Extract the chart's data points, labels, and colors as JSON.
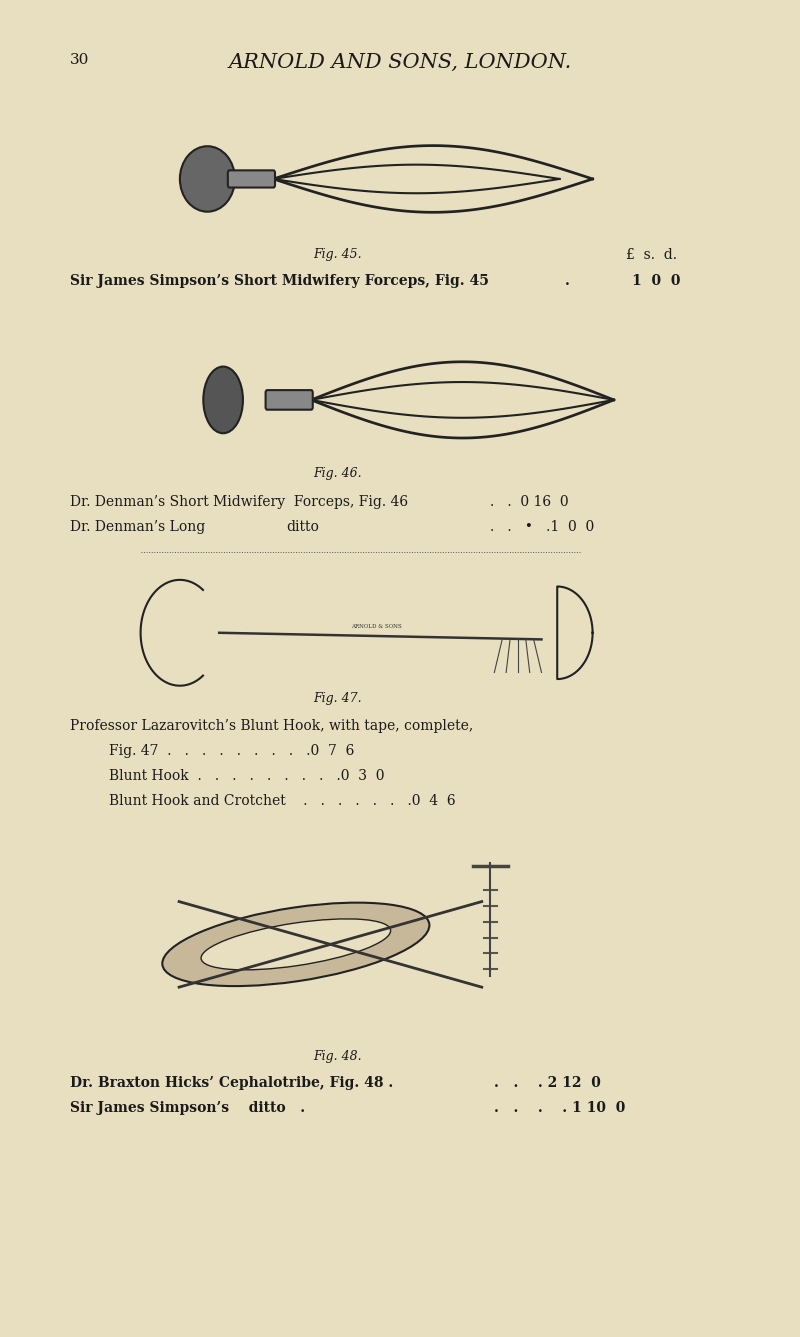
{
  "bg_color": "#e8dfc0",
  "page_number": "30",
  "header": "ARNOLD AND SONS, LONDON.",
  "header_style": "italic",
  "fig45_caption": "Fig. 45.",
  "fig46_caption": "Fig. 46.",
  "fig47_caption": "Fig. 47.",
  "fig48_caption": "Fig. 48.",
  "currency_header": "£  s.  d.",
  "items": [
    {
      "text_left": "Sir James Simpson’s Short Midwifery Forceps, Fig. 45",
      "text_right": ".",
      "price": "1  0  0",
      "bold": true
    },
    {
      "text_left": "Dr. Denman’s Short Midwifery  Forceps, Fig. 46",
      "text_right": "  .    .  0 16  0",
      "price": "",
      "bold": false
    },
    {
      "text_left": "Dr. Denman’s Long             ditto",
      "text_right": "  .    .    •    .1  0  0",
      "price": "",
      "bold": false
    },
    {
      "text_left": "Professor Lazarovitch’s Blunt Hook, with tape, complete,",
      "text_right": "",
      "price": "",
      "bold": false
    },
    {
      "text_left": "    Fig. 47  .   .   .   .   .   .   .   .   .0  7  6",
      "text_right": "",
      "price": "",
      "bold": false
    },
    {
      "text_left": "    Blunt Hook  .   .   .   .   .   .   .   .   .0  3  0",
      "text_right": "",
      "price": "",
      "bold": false
    },
    {
      "text_left": "    Blunt Hook and Crotchet    .   .   .   .   .   .   .0  4  6",
      "text_right": "",
      "price": "",
      "bold": false
    },
    {
      "text_left": "Dr. Braxton Hicks’ Cephalotribe, Fig. 48 .",
      "text_right": "  .    .    . 2 12  0",
      "price": "",
      "bold": true
    },
    {
      "text_left": "Sir James Simpson’s    ditto   .   .",
      "text_right": "  .    .    .    . 1 10  0",
      "price": "",
      "bold": true
    }
  ],
  "text_color": "#1a1a1a",
  "font_size_header": 15,
  "font_size_caption": 9,
  "font_size_body": 10,
  "font_size_page": 11
}
